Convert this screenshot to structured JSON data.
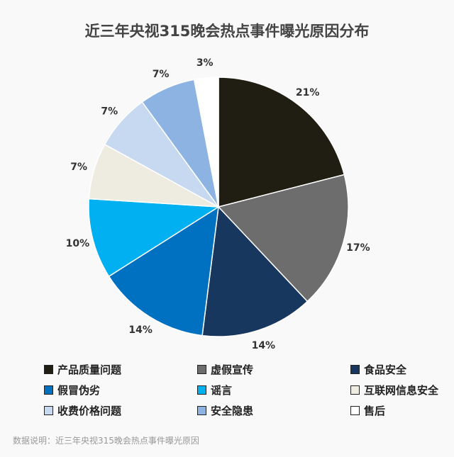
{
  "chart_data": {
    "type": "pie",
    "title": "近三年央视315晚会热点事件曝光原因分布",
    "start": "top",
    "direction": "clockwise",
    "categories": [
      "产品质量问题",
      "虚假宣传",
      "食品安全",
      "假冒伪劣",
      "谣言",
      "互联网信息安全",
      "收费价格问题",
      "安全隐患",
      "售后"
    ],
    "values": [
      21,
      17,
      14,
      14,
      10,
      7,
      7,
      7,
      3
    ],
    "labels": [
      "21%",
      "17%",
      "14%",
      "14%",
      "10%",
      "7%",
      "7%",
      "7%",
      "3%"
    ],
    "colors": [
      "#201d12",
      "#6d6d6d",
      "#17375e",
      "#0070c0",
      "#00b0f0",
      "#eeece1",
      "#c6d9f1",
      "#8db3e2",
      "#ffffff"
    ],
    "legend": "bottom"
  },
  "note": "数据说明：近三年央视315晚会热点事件曝光原因"
}
